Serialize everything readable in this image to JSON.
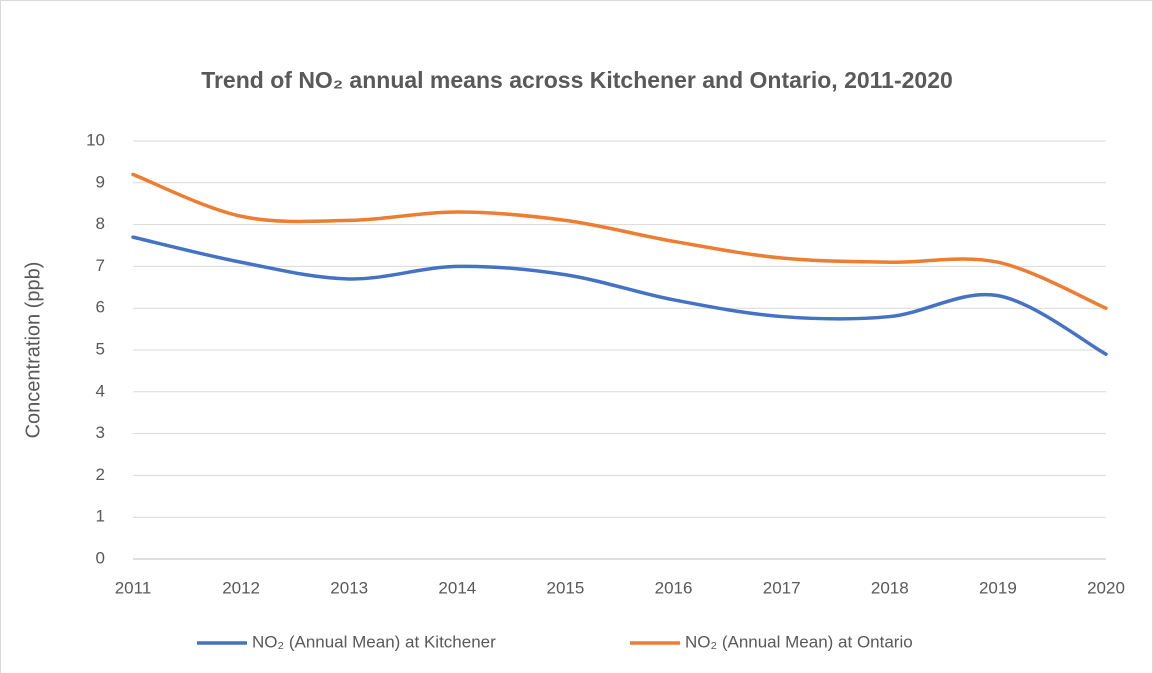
{
  "chart_data": {
    "type": "line",
    "title": "Trend of NO₂ annual means across Kitchener and Ontario, 2011-2020",
    "y_label": "Concentration (ppb)",
    "x": [
      2011,
      2012,
      2013,
      2014,
      2015,
      2016,
      2017,
      2018,
      2019,
      2020
    ],
    "xlim": [
      2011,
      2020
    ],
    "xticks": [
      2011,
      2012,
      2013,
      2014,
      2015,
      2016,
      2017,
      2018,
      2019,
      2020
    ],
    "ylim": [
      0,
      10
    ],
    "yticks": [
      0,
      1,
      2,
      3,
      4,
      5,
      6,
      7,
      8,
      9,
      10
    ],
    "grid": true,
    "smooth": true,
    "legend": "bottom",
    "series": [
      {
        "name": "NO₂ (Annual Mean) at Kitchener",
        "color": "#4472c4",
        "values": [
          7.7,
          7.1,
          6.7,
          7.0,
          6.8,
          6.2,
          5.8,
          5.8,
          6.3,
          4.9
        ]
      },
      {
        "name": "NO₂ (Annual Mean) at Ontario",
        "color": "#ed7d31",
        "values": [
          9.2,
          8.2,
          8.1,
          8.3,
          8.1,
          7.6,
          7.2,
          7.1,
          7.1,
          6.0
        ]
      }
    ]
  }
}
